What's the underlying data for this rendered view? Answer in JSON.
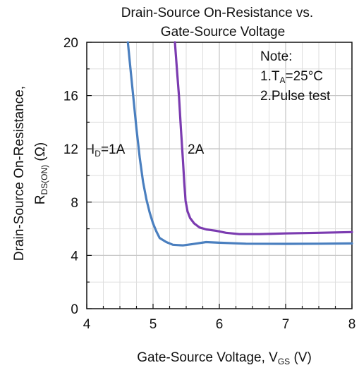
{
  "chart_data": {
    "type": "line",
    "title_line1": "Drain-Source On-Resistance vs.",
    "title_line2": "Gate-Source Voltage",
    "xlabel_main": "Gate-Source Voltage, V",
    "xlabel_sub": "GS",
    "xlabel_unit": " (V)",
    "ylabel_line1": "Drain-Source On-Resistance,",
    "ylabel_main": "R",
    "ylabel_sub": "DS(ON)",
    "ylabel_unit": " (Ω)",
    "xlim": [
      4,
      8
    ],
    "ylim": [
      0,
      20
    ],
    "x_ticks": [
      "4",
      "5",
      "6",
      "7",
      "8"
    ],
    "y_ticks": [
      "0",
      "4",
      "8",
      "12",
      "16",
      "20"
    ],
    "grid": true,
    "note": {
      "line1": "Note:",
      "line2_pre": "1.T",
      "line2_sub": "A",
      "line2_post": "=25°C",
      "line3": "2.Pulse test"
    },
    "series": [
      {
        "name_main": "I",
        "name_sub": "D",
        "name_post": "=1A",
        "color": "#4a7fbf",
        "points": [
          [
            4.62,
            20
          ],
          [
            4.66,
            18
          ],
          [
            4.7,
            16
          ],
          [
            4.75,
            13.5
          ],
          [
            4.8,
            11.3
          ],
          [
            4.85,
            9.5
          ],
          [
            4.9,
            8.2
          ],
          [
            4.95,
            7.2
          ],
          [
            5.0,
            6.4
          ],
          [
            5.05,
            5.8
          ],
          [
            5.1,
            5.3
          ],
          [
            5.2,
            5.0
          ],
          [
            5.3,
            4.8
          ],
          [
            5.45,
            4.75
          ],
          [
            5.6,
            4.85
          ],
          [
            5.8,
            5.0
          ],
          [
            6.0,
            4.95
          ],
          [
            6.4,
            4.88
          ],
          [
            7.0,
            4.87
          ],
          [
            7.5,
            4.88
          ],
          [
            8.0,
            4.9
          ]
        ]
      },
      {
        "name_main": "2A",
        "name_sub": "",
        "name_post": "",
        "color": "#7b3bb0",
        "points": [
          [
            5.33,
            20
          ],
          [
            5.36,
            18
          ],
          [
            5.39,
            16
          ],
          [
            5.42,
            13.5
          ],
          [
            5.45,
            11.2
          ],
          [
            5.47,
            9.5
          ],
          [
            5.49,
            8.1
          ],
          [
            5.52,
            7.3
          ],
          [
            5.56,
            6.8
          ],
          [
            5.62,
            6.4
          ],
          [
            5.7,
            6.1
          ],
          [
            5.8,
            5.95
          ],
          [
            5.95,
            5.85
          ],
          [
            6.1,
            5.7
          ],
          [
            6.3,
            5.6
          ],
          [
            6.6,
            5.6
          ],
          [
            7.0,
            5.65
          ],
          [
            7.5,
            5.7
          ],
          [
            8.0,
            5.75
          ]
        ]
      }
    ],
    "colors": {
      "axis": "#111111",
      "grid_major": "#c8c8c8",
      "grid_minor": "#dedede"
    }
  }
}
